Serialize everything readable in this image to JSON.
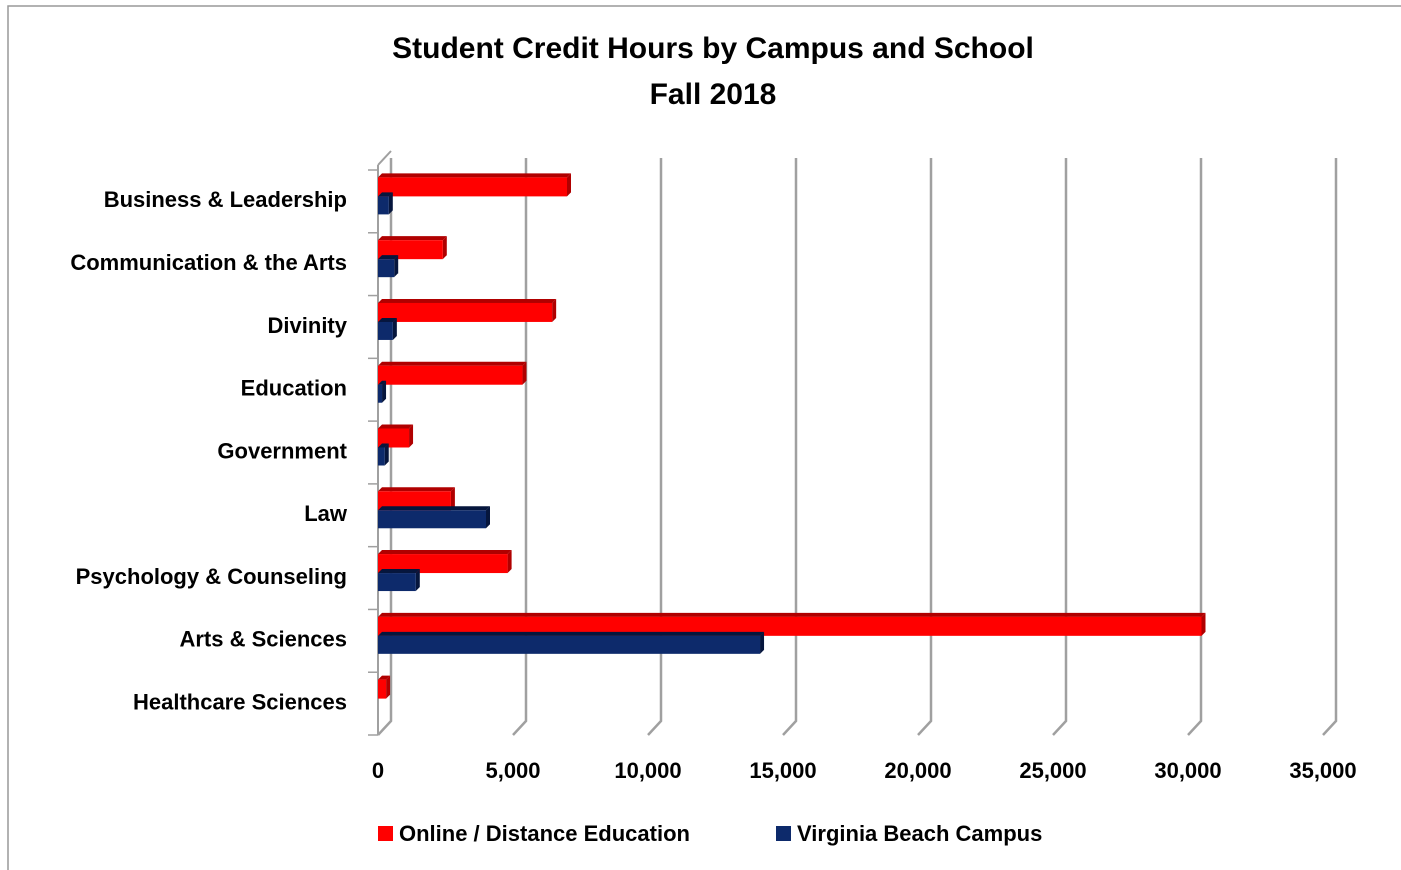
{
  "chart_data": {
    "type": "bar",
    "orientation": "horizontal",
    "title": [
      "Student Credit Hours by Campus and School",
      "Fall 2018"
    ],
    "categories": [
      "Business & Leadership",
      "Communication & the Arts",
      "Divinity",
      "Education",
      "Government",
      "Law",
      "Psychology & Counseling",
      "Arts & Sciences",
      "Healthcare Sciences"
    ],
    "series": [
      {
        "name": "Online / Distance Education",
        "color": "#ff0000",
        "values": [
          7000,
          2400,
          6450,
          5350,
          1150,
          2700,
          4800,
          30500,
          300
        ]
      },
      {
        "name": "Virginia Beach Campus",
        "color": "#0d2a6b",
        "values": [
          400,
          600,
          550,
          150,
          250,
          4000,
          1400,
          14150,
          0
        ]
      }
    ],
    "xlim": [
      0,
      35000
    ],
    "xticks": [
      0,
      {
        "value": 5000,
        "label": "5,000"
      },
      {
        "value": 10000,
        "label": "10,000"
      },
      {
        "value": 15000,
        "label": "15,000"
      },
      {
        "value": 20000,
        "label": "20,000"
      },
      {
        "value": 25000,
        "label": "25,000"
      },
      {
        "value": 30000,
        "label": "30,000"
      },
      {
        "value": 35000,
        "label": "35,000"
      }
    ],
    "grid": true,
    "legend": "bottom"
  }
}
